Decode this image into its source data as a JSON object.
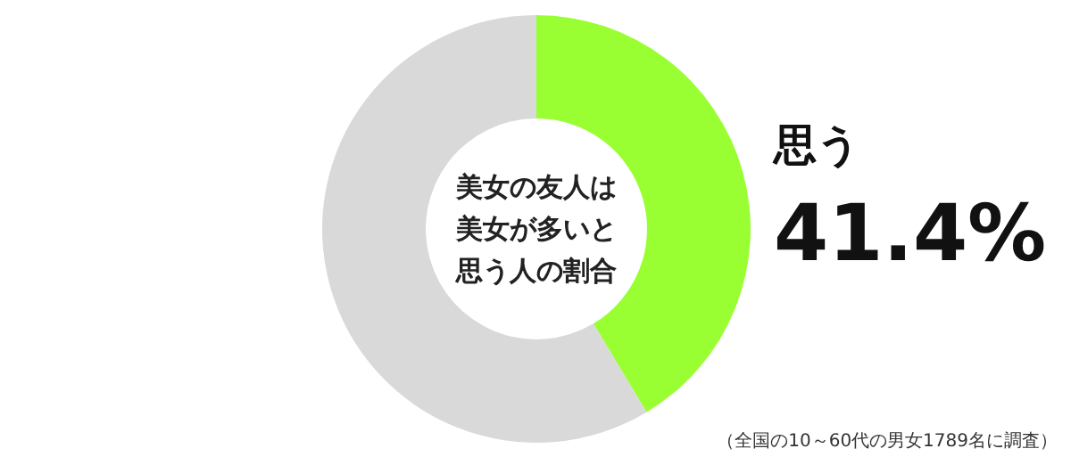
{
  "chart_data": {
    "type": "donut",
    "title": "美女の友人は美女が多いと思う人の割合",
    "categories": [
      "思う",
      null
    ],
    "values": [
      41.4,
      58.6
    ],
    "colors": [
      "#99ff33",
      "#d9d9d9"
    ],
    "value_labels": [
      "41.4%",
      null
    ],
    "annotations": [
      "（全国の10～60代の男女1789名に調査）"
    ]
  }
}
